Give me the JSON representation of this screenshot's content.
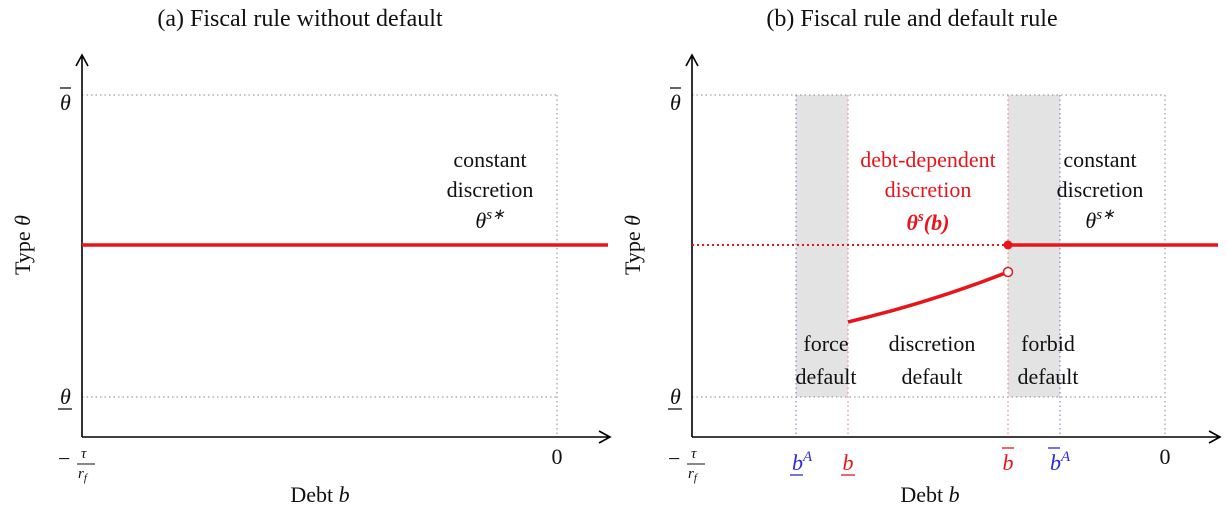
{
  "panel_a": {
    "title": "(a) Fiscal rule without default",
    "y_label": {
      "text": "Type",
      "symbol": "θ"
    },
    "x_label": {
      "text": "Debt",
      "symbol": "b"
    },
    "y_ticks": {
      "top": "θ",
      "bottom": "θ"
    },
    "x_ticks": {
      "left": {
        "sign": "−",
        "num": "τ",
        "den": "r",
        "den_sub": "f"
      },
      "zero": "0"
    },
    "annotation": {
      "lines": [
        "constant",
        "discretion"
      ],
      "symbol": "θ",
      "sup": "s∗"
    }
  },
  "panel_b": {
    "title": "(b) Fiscal rule and default rule",
    "y_label": {
      "text": "Type",
      "symbol": "θ"
    },
    "x_label": {
      "text": "Debt",
      "symbol": "b"
    },
    "y_ticks": {
      "top": "θ",
      "bottom": "θ"
    },
    "x_ticks": {
      "left": {
        "sign": "−",
        "num": "τ",
        "den": "r",
        "den_sub": "f"
      },
      "b_lower_A": {
        "base": "b",
        "sup": "A"
      },
      "b_lower": "b",
      "b_upper": "b",
      "b_upper_A": {
        "base": "b",
        "sup": "A"
      },
      "zero": "0"
    },
    "red_annotation": {
      "lines": [
        "debt-dependent",
        "discretion"
      ],
      "symbol": "θ",
      "sup": "s",
      "arg": "(b)"
    },
    "annotation": {
      "lines": [
        "constant",
        "discretion"
      ],
      "symbol": "θ",
      "sup": "s∗"
    },
    "regions": [
      {
        "lines": [
          "force",
          "default"
        ]
      },
      {
        "lines": [
          "discretion",
          "default"
        ]
      },
      {
        "lines": [
          "forbid",
          "default"
        ]
      }
    ]
  }
}
